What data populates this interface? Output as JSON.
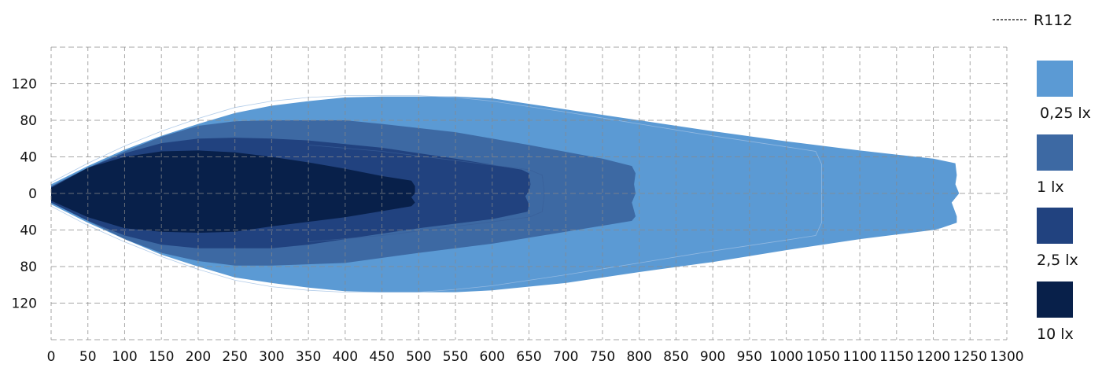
{
  "chart_data": {
    "type": "area",
    "title": "",
    "xlabel": "",
    "ylabel": "",
    "xlim": [
      0,
      1300
    ],
    "ylim": [
      -160,
      160
    ],
    "grid": true,
    "legend_placement": "right",
    "x_ticks": [
      "0",
      "50",
      "100",
      "150",
      "200",
      "250",
      "300",
      "350",
      "400",
      "450",
      "500",
      "550",
      "600",
      "650",
      "700",
      "750",
      "800",
      "850",
      "900",
      "950",
      "1000",
      "1050",
      "1100",
      "1150",
      "1200",
      "1250",
      "1300"
    ],
    "y_ticks": [
      {
        "value": 120,
        "label": "120"
      },
      {
        "value": 80,
        "label": "80"
      },
      {
        "value": 40,
        "label": "40"
      },
      {
        "value": 0,
        "label": "0"
      },
      {
        "value": -40,
        "label": "40"
      },
      {
        "value": -80,
        "label": "80"
      },
      {
        "value": -120,
        "label": "120"
      }
    ],
    "series": [
      {
        "name": "0,25 lx",
        "color": "#5b9ad4",
        "points": [
          [
            0,
            10
          ],
          [
            25,
            20
          ],
          [
            50,
            30
          ],
          [
            100,
            48
          ],
          [
            150,
            63
          ],
          [
            200,
            76
          ],
          [
            250,
            88
          ],
          [
            300,
            96
          ],
          [
            350,
            101
          ],
          [
            400,
            105
          ],
          [
            450,
            106
          ],
          [
            550,
            106
          ],
          [
            600,
            104
          ],
          [
            700,
            92
          ],
          [
            800,
            80
          ],
          [
            900,
            68
          ],
          [
            1000,
            57
          ],
          [
            1100,
            47
          ],
          [
            1200,
            38
          ],
          [
            1230,
            33
          ],
          [
            1232,
            20
          ],
          [
            1230,
            10
          ],
          [
            1235,
            0
          ],
          [
            1225,
            -10
          ],
          [
            1232,
            -25
          ],
          [
            1232,
            -32
          ],
          [
            1210,
            -38
          ],
          [
            1200,
            -40
          ],
          [
            1100,
            -50
          ],
          [
            1000,
            -62
          ],
          [
            900,
            -75
          ],
          [
            800,
            -86
          ],
          [
            700,
            -98
          ],
          [
            600,
            -106
          ],
          [
            550,
            -108
          ],
          [
            450,
            -108
          ],
          [
            400,
            -107
          ],
          [
            350,
            -103
          ],
          [
            300,
            -98
          ],
          [
            250,
            -92
          ],
          [
            200,
            -80
          ],
          [
            150,
            -67
          ],
          [
            100,
            -50
          ],
          [
            50,
            -32
          ],
          [
            25,
            -22
          ],
          [
            0,
            -12
          ]
        ]
      },
      {
        "name": "1 lx",
        "color": "#3d69a3",
        "points": [
          [
            0,
            8
          ],
          [
            50,
            28
          ],
          [
            100,
            46
          ],
          [
            150,
            62
          ],
          [
            200,
            74
          ],
          [
            250,
            79
          ],
          [
            300,
            80
          ],
          [
            400,
            80
          ],
          [
            450,
            76
          ],
          [
            550,
            67
          ],
          [
            650,
            53
          ],
          [
            750,
            38
          ],
          [
            790,
            30
          ],
          [
            795,
            22
          ],
          [
            793,
            10
          ],
          [
            795,
            0
          ],
          [
            790,
            -10
          ],
          [
            795,
            -25
          ],
          [
            790,
            -30
          ],
          [
            700,
            -42
          ],
          [
            600,
            -55
          ],
          [
            500,
            -65
          ],
          [
            400,
            -76
          ],
          [
            300,
            -79
          ],
          [
            250,
            -79
          ],
          [
            200,
            -74
          ],
          [
            150,
            -65
          ],
          [
            100,
            -50
          ],
          [
            50,
            -30
          ],
          [
            0,
            -10
          ]
        ]
      },
      {
        "name": "2,5 lx",
        "color": "#21427f",
        "points": [
          [
            0,
            7
          ],
          [
            50,
            28
          ],
          [
            100,
            44
          ],
          [
            150,
            55
          ],
          [
            200,
            60
          ],
          [
            250,
            61
          ],
          [
            300,
            60
          ],
          [
            350,
            58
          ],
          [
            450,
            50
          ],
          [
            550,
            38
          ],
          [
            640,
            26
          ],
          [
            650,
            22
          ],
          [
            652,
            10
          ],
          [
            650,
            2
          ],
          [
            645,
            -3
          ],
          [
            650,
            -12
          ],
          [
            648,
            -20
          ],
          [
            600,
            -28
          ],
          [
            500,
            -38
          ],
          [
            400,
            -50
          ],
          [
            350,
            -56
          ],
          [
            300,
            -60
          ],
          [
            200,
            -60
          ],
          [
            150,
            -56
          ],
          [
            100,
            -46
          ],
          [
            50,
            -30
          ],
          [
            0,
            -10
          ]
        ]
      },
      {
        "name": "10 lx",
        "color": "#08204a",
        "points": [
          [
            0,
            6
          ],
          [
            50,
            28
          ],
          [
            100,
            40
          ],
          [
            150,
            46
          ],
          [
            200,
            47
          ],
          [
            250,
            45
          ],
          [
            300,
            40
          ],
          [
            350,
            34
          ],
          [
            400,
            27
          ],
          [
            450,
            19
          ],
          [
            490,
            14
          ],
          [
            495,
            8
          ],
          [
            495,
            0
          ],
          [
            490,
            -4
          ],
          [
            495,
            -10
          ],
          [
            490,
            -14
          ],
          [
            400,
            -26
          ],
          [
            300,
            -36
          ],
          [
            250,
            -42
          ],
          [
            200,
            -43
          ],
          [
            150,
            -42
          ],
          [
            100,
            -38
          ],
          [
            50,
            -26
          ],
          [
            0,
            -8
          ]
        ]
      }
    ],
    "reference": {
      "name": "R112",
      "color": "#3a5f99",
      "contours": [
        [
          [
            0,
            12
          ],
          [
            50,
            33
          ],
          [
            100,
            52
          ],
          [
            150,
            68
          ],
          [
            200,
            82
          ],
          [
            250,
            94
          ],
          [
            300,
            101
          ],
          [
            350,
            105
          ],
          [
            400,
            107
          ],
          [
            500,
            107
          ],
          [
            550,
            105
          ],
          [
            600,
            101
          ],
          [
            700,
            89
          ],
          [
            800,
            76
          ],
          [
            900,
            63
          ],
          [
            1000,
            51
          ],
          [
            1040,
            46
          ],
          [
            1048,
            32
          ],
          [
            1048,
            -32
          ],
          [
            1040,
            -46
          ],
          [
            1000,
            -51
          ],
          [
            900,
            -63
          ],
          [
            800,
            -76
          ],
          [
            700,
            -89
          ],
          [
            600,
            -101
          ],
          [
            550,
            -105
          ],
          [
            500,
            -108
          ],
          [
            400,
            -108
          ],
          [
            350,
            -106
          ],
          [
            300,
            -102
          ],
          [
            250,
            -95
          ],
          [
            200,
            -83
          ],
          [
            150,
            -69
          ],
          [
            100,
            -53
          ],
          [
            50,
            -35
          ],
          [
            0,
            -14
          ]
        ],
        [
          [
            350,
            53
          ],
          [
            450,
            46
          ],
          [
            550,
            36
          ],
          [
            650,
            26
          ],
          [
            668,
            20
          ],
          [
            671,
            0
          ],
          [
            668,
            -20
          ],
          [
            650,
            -26
          ],
          [
            550,
            -36
          ],
          [
            450,
            -46
          ],
          [
            350,
            -53
          ]
        ]
      ]
    }
  }
}
